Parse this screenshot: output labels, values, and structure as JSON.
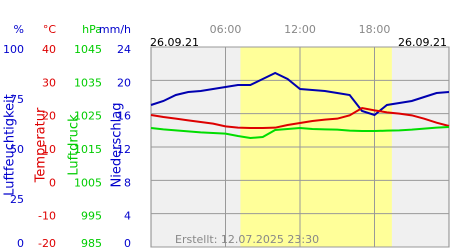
{
  "chart_data": {
    "type": "line",
    "date_start": "26.09.21",
    "date_end": "26.09.21",
    "footer": "Erstellt: 12.07.2025 23:30",
    "x": [
      0,
      1,
      2,
      3,
      4,
      5,
      6,
      7,
      8,
      9,
      10,
      11,
      12,
      13,
      14,
      15,
      16,
      17,
      18,
      19,
      20,
      21,
      22,
      23,
      24
    ],
    "xlim": [
      0,
      24
    ],
    "xticks": [
      {
        "value": 6,
        "label": "06:00"
      },
      {
        "value": 12,
        "label": "12:00"
      },
      {
        "value": 18,
        "label": "18:00"
      }
    ],
    "daylight": [
      7.2,
      19.4
    ],
    "grid": true,
    "axes": [
      {
        "unit": "%",
        "label": "Luftfeuchtigkeit",
        "color": "#0000cc",
        "line_color": "#0000b0",
        "ylim": [
          0,
          100
        ],
        "yticks": [
          0,
          25,
          50,
          75,
          100
        ],
        "values": [
          71,
          73,
          76,
          77.5,
          78,
          79,
          80,
          81,
          81,
          84,
          87,
          84,
          79,
          78.5,
          78,
          77,
          76,
          68,
          66,
          71,
          72,
          73,
          75,
          77,
          77.5
        ]
      },
      {
        "unit": "°C",
        "label": "Temperatur",
        "color": "#dd0000",
        "line_color": "#dd0000",
        "ylim": [
          -20,
          40
        ],
        "yticks": [
          -20,
          -10,
          0,
          10,
          20,
          30,
          40
        ],
        "values": [
          19.6,
          19,
          18.5,
          18,
          17.5,
          17,
          16.2,
          15.8,
          15.7,
          15.7,
          15.8,
          16.6,
          17.2,
          17.8,
          18.2,
          18.5,
          19.5,
          21.7,
          21,
          20.4,
          20,
          19.5,
          18.5,
          17.3,
          16.3
        ]
      },
      {
        "unit": "hPa",
        "label": "Luftdruck",
        "color": "#00cc00",
        "line_color": "#00dd00",
        "ylim": [
          985,
          1045
        ],
        "yticks": [
          985,
          995,
          1005,
          1015,
          1025,
          1035,
          1045
        ],
        "values": [
          1020.7,
          1020.3,
          1020,
          1019.7,
          1019.4,
          1019.2,
          1019,
          1018.3,
          1017.7,
          1018,
          1020.1,
          1020.4,
          1020.7,
          1020.4,
          1020.3,
          1020.2,
          1019.9,
          1019.8,
          1019.8,
          1019.9,
          1020,
          1020.2,
          1020.5,
          1020.8,
          1021
        ]
      },
      {
        "unit": "mm/h",
        "label": "Niederschlag",
        "color": "#0000cc",
        "ylim": [
          0,
          24
        ],
        "yticks": [
          0,
          4,
          8,
          12,
          16,
          20,
          24
        ]
      }
    ]
  }
}
